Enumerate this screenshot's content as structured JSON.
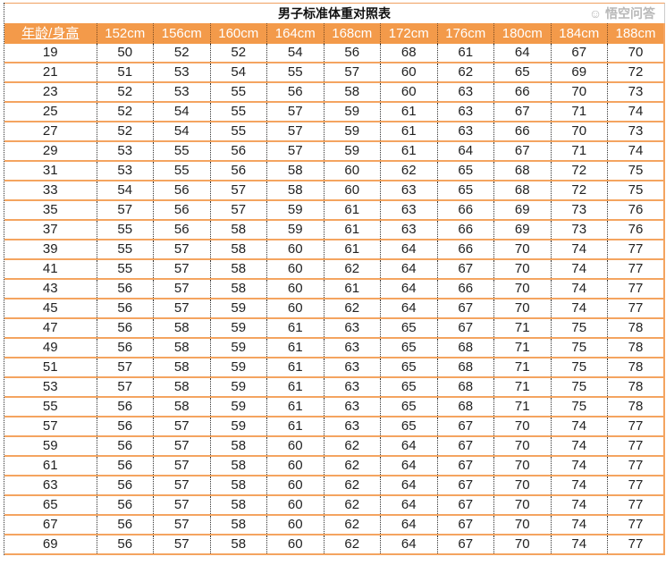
{
  "title": "男子标准体重对照表",
  "headers": [
    "年龄/身高",
    "152cm",
    "156cm",
    "160cm",
    "164cm",
    "168cm",
    "172cm",
    "176cm",
    "180cm",
    "184cm",
    "188cm"
  ],
  "rows": [
    [
      "19",
      "50",
      "52",
      "52",
      "54",
      "56",
      "68",
      "61",
      "64",
      "67",
      "70"
    ],
    [
      "21",
      "51",
      "53",
      "54",
      "55",
      "57",
      "60",
      "62",
      "65",
      "69",
      "72"
    ],
    [
      "23",
      "52",
      "53",
      "55",
      "56",
      "58",
      "60",
      "63",
      "66",
      "70",
      "73"
    ],
    [
      "25",
      "52",
      "54",
      "55",
      "57",
      "59",
      "61",
      "63",
      "67",
      "71",
      "74"
    ],
    [
      "27",
      "52",
      "54",
      "55",
      "57",
      "59",
      "61",
      "63",
      "66",
      "70",
      "73"
    ],
    [
      "29",
      "53",
      "55",
      "56",
      "57",
      "59",
      "61",
      "64",
      "67",
      "71",
      "74"
    ],
    [
      "31",
      "53",
      "55",
      "56",
      "58",
      "60",
      "62",
      "65",
      "68",
      "72",
      "75"
    ],
    [
      "33",
      "54",
      "56",
      "57",
      "58",
      "60",
      "63",
      "65",
      "68",
      "72",
      "75"
    ],
    [
      "35",
      "57",
      "56",
      "57",
      "59",
      "61",
      "63",
      "66",
      "69",
      "73",
      "76"
    ],
    [
      "37",
      "55",
      "56",
      "58",
      "59",
      "61",
      "63",
      "66",
      "69",
      "73",
      "76"
    ],
    [
      "39",
      "55",
      "57",
      "58",
      "60",
      "61",
      "64",
      "66",
      "70",
      "74",
      "77"
    ],
    [
      "41",
      "55",
      "57",
      "58",
      "60",
      "62",
      "64",
      "67",
      "70",
      "74",
      "77"
    ],
    [
      "43",
      "56",
      "57",
      "58",
      "60",
      "61",
      "64",
      "66",
      "70",
      "74",
      "77"
    ],
    [
      "45",
      "56",
      "57",
      "59",
      "60",
      "62",
      "64",
      "67",
      "70",
      "74",
      "77"
    ],
    [
      "47",
      "56",
      "58",
      "59",
      "61",
      "63",
      "65",
      "67",
      "71",
      "75",
      "78"
    ],
    [
      "49",
      "56",
      "58",
      "59",
      "61",
      "63",
      "65",
      "68",
      "71",
      "75",
      "78"
    ],
    [
      "51",
      "57",
      "58",
      "59",
      "61",
      "63",
      "65",
      "68",
      "71",
      "75",
      "78"
    ],
    [
      "53",
      "57",
      "58",
      "59",
      "61",
      "63",
      "65",
      "68",
      "71",
      "75",
      "78"
    ],
    [
      "55",
      "56",
      "58",
      "59",
      "61",
      "63",
      "65",
      "68",
      "71",
      "75",
      "78"
    ],
    [
      "57",
      "56",
      "57",
      "59",
      "61",
      "63",
      "65",
      "67",
      "70",
      "74",
      "77"
    ],
    [
      "59",
      "56",
      "57",
      "58",
      "60",
      "62",
      "64",
      "67",
      "70",
      "74",
      "77"
    ],
    [
      "61",
      "56",
      "57",
      "58",
      "60",
      "62",
      "64",
      "67",
      "70",
      "74",
      "77"
    ],
    [
      "63",
      "56",
      "57",
      "58",
      "60",
      "62",
      "64",
      "67",
      "70",
      "74",
      "77"
    ],
    [
      "65",
      "56",
      "57",
      "58",
      "60",
      "62",
      "64",
      "67",
      "70",
      "74",
      "77"
    ],
    [
      "67",
      "56",
      "57",
      "58",
      "60",
      "62",
      "64",
      "67",
      "70",
      "74",
      "77"
    ],
    [
      "69",
      "56",
      "57",
      "58",
      "60",
      "62",
      "64",
      "67",
      "70",
      "74",
      "77"
    ]
  ],
  "watermark": "悟空问答",
  "colors": {
    "header_bg": "#f39a4a",
    "row_border": "#f4a460"
  }
}
